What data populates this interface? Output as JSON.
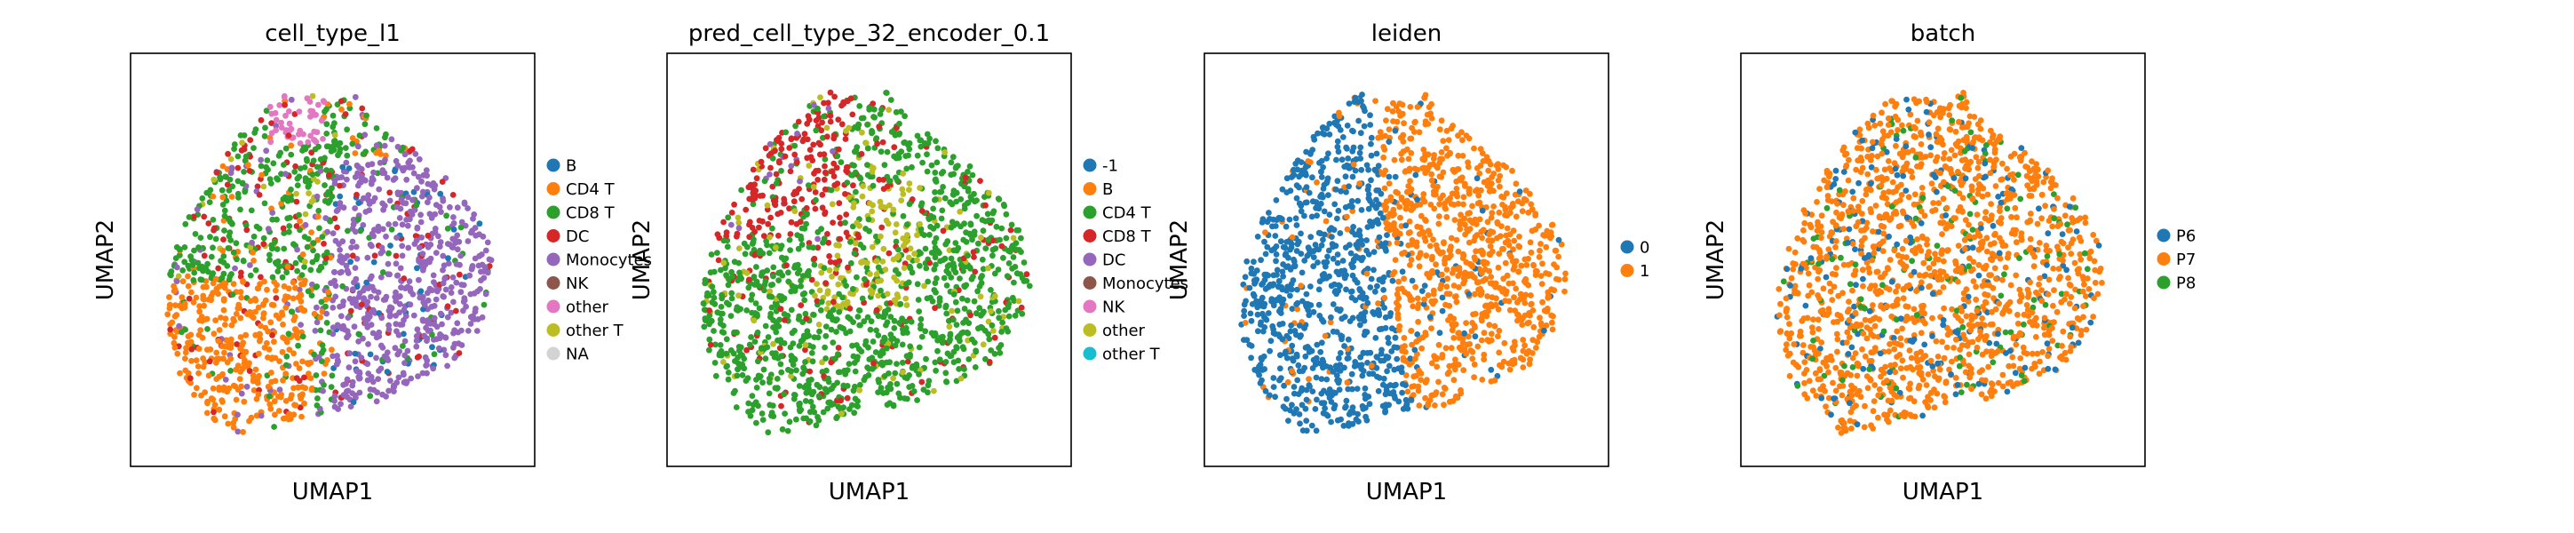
{
  "chart_data": [
    {
      "type": "scatter",
      "title": "cell_type_l1",
      "xlabel": "UMAP1",
      "ylabel": "UMAP2",
      "grid": false,
      "legend_placement": "right",
      "categories": [
        "B",
        "CD4 T",
        "CD8 T",
        "DC",
        "Monocytes",
        "NK",
        "other",
        "other T",
        "NA"
      ],
      "colors": [
        "#1f77b4",
        "#ff7f0e",
        "#2ca02c",
        "#d62728",
        "#9467bd",
        "#8c564b",
        "#e377c2",
        "#bcbd22",
        "#d3d3d3"
      ]
    },
    {
      "type": "scatter",
      "title": "pred_cell_type_32_encoder_0.1",
      "xlabel": "UMAP1",
      "ylabel": "UMAP2",
      "grid": false,
      "legend_placement": "right",
      "categories": [
        "-1",
        "B",
        "CD4 T",
        "CD8 T",
        "DC",
        "Monocytes",
        "NK",
        "other",
        "other T"
      ],
      "colors": [
        "#1f77b4",
        "#ff7f0e",
        "#2ca02c",
        "#d62728",
        "#9467bd",
        "#8c564b",
        "#e377c2",
        "#bcbd22",
        "#17becf"
      ]
    },
    {
      "type": "scatter",
      "title": "leiden",
      "xlabel": "UMAP1",
      "ylabel": "UMAP2",
      "grid": false,
      "legend_placement": "right",
      "categories": [
        "0",
        "1"
      ],
      "colors": [
        "#1f77b4",
        "#ff7f0e"
      ]
    },
    {
      "type": "scatter",
      "title": "batch",
      "xlabel": "UMAP1",
      "ylabel": "UMAP2",
      "grid": false,
      "legend_placement": "right",
      "categories": [
        "P6",
        "P7",
        "P8"
      ],
      "colors": [
        "#1f77b4",
        "#ff7f0e",
        "#2ca02c"
      ]
    }
  ]
}
